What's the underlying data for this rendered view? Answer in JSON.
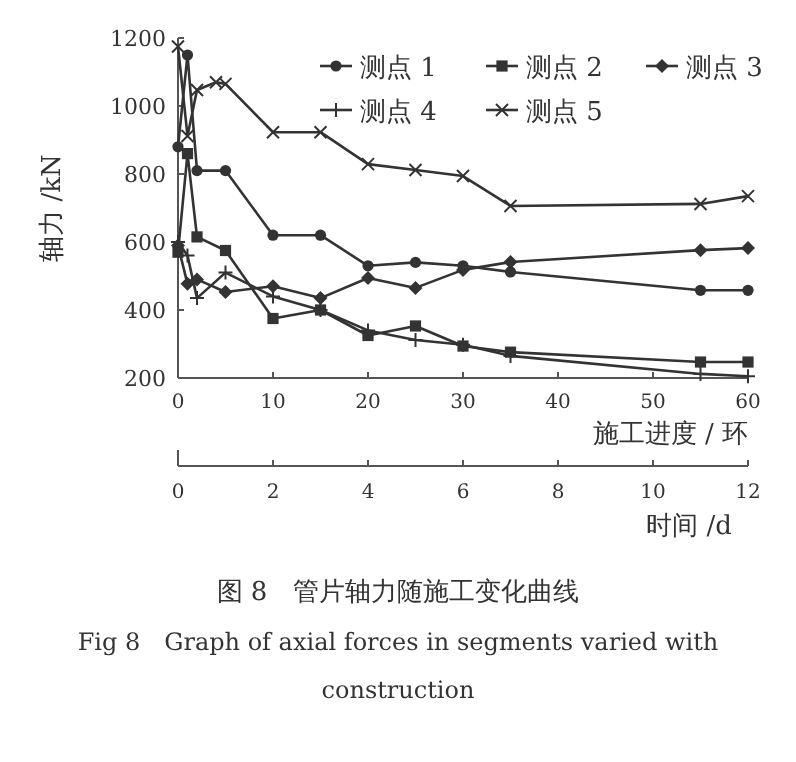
{
  "chart_data": {
    "type": "line",
    "title": "图 8　管片轴力随施工变化曲线",
    "subtitle": "Fig 8　Graph of axial forces in segments varied with construction",
    "xlabel": "施工进度 / 环",
    "ylabel": "轴力 /kN",
    "x2label": "时间 /d",
    "xlim": [
      0,
      60
    ],
    "xticks": [
      0,
      10,
      20,
      30,
      40,
      50,
      60
    ],
    "x2lim": [
      0,
      12
    ],
    "x2ticks": [
      0,
      2,
      4,
      6,
      8,
      10,
      12
    ],
    "ylim": [
      200,
      1200
    ],
    "yticks": [
      200,
      400,
      600,
      800,
      1000,
      1200
    ],
    "grid": false,
    "legend": "top right",
    "line_style": "solid",
    "series": [
      {
        "name": "测点 1",
        "color": "#333333",
        "marker": "circle",
        "x": [
          0,
          1,
          2,
          5,
          10,
          15,
          20,
          25,
          30,
          35,
          55,
          60
        ],
        "values": [
          880,
          1150,
          810,
          810,
          620,
          620,
          530,
          540,
          530,
          512,
          458,
          458
        ]
      },
      {
        "name": "测点 2",
        "color": "#333333",
        "marker": "square",
        "x": [
          0,
          1,
          2,
          5,
          10,
          15,
          20,
          25,
          30,
          35,
          55,
          60
        ],
        "values": [
          570,
          860,
          615,
          575,
          375,
          400,
          325,
          353,
          294,
          276,
          247,
          247
        ]
      },
      {
        "name": "测点 3",
        "color": "#333333",
        "marker": "diamond",
        "x": [
          0,
          1,
          2,
          5,
          10,
          15,
          20,
          25,
          30,
          35,
          55,
          60
        ],
        "values": [
          590,
          477,
          490,
          453,
          470,
          435,
          494,
          465,
          518,
          541,
          576,
          582
        ]
      },
      {
        "name": "测点 4",
        "color": "#333333",
        "marker": "plus",
        "x": [
          0,
          1,
          2,
          5,
          10,
          15,
          20,
          25,
          30,
          35,
          55,
          60
        ],
        "values": [
          600,
          560,
          435,
          510,
          440,
          400,
          340,
          312,
          298,
          265,
          212,
          205
        ]
      },
      {
        "name": "测点 5",
        "color": "#333333",
        "marker": "cross",
        "x": [
          0,
          1,
          2,
          4,
          5,
          10,
          15,
          20,
          25,
          30,
          35,
          55,
          60
        ],
        "values": [
          1175,
          912,
          1047,
          1070,
          1065,
          923,
          923,
          829,
          812,
          794,
          706,
          712,
          735
        ]
      }
    ]
  }
}
